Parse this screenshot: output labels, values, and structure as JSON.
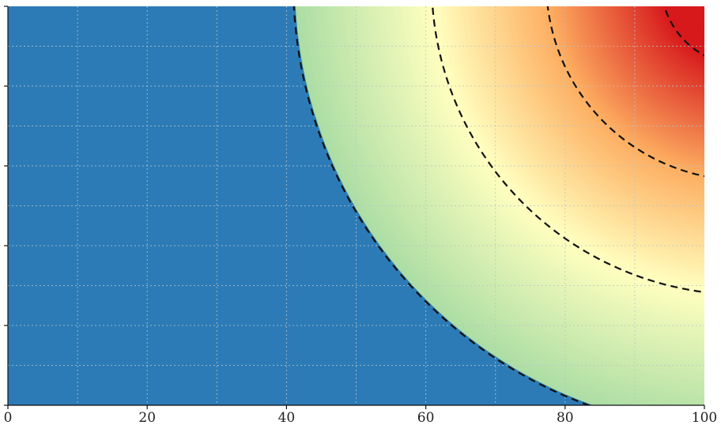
{
  "chart_data": {
    "type": "heatmap",
    "title": "",
    "xlabel": "",
    "ylabel": "",
    "xlim": [
      0,
      100
    ],
    "x_ticks": [
      {
        "value": 0,
        "label": "0"
      },
      {
        "value": 20,
        "label": "20"
      },
      {
        "value": 40,
        "label": "40"
      },
      {
        "value": 60,
        "label": "60"
      },
      {
        "value": 80,
        "label": "80"
      },
      {
        "value": 100,
        "label": "100"
      }
    ],
    "x_minor_grid": [
      10,
      30,
      50,
      70,
      90
    ],
    "grid": true,
    "grid_style": "dotted",
    "colormap": {
      "name": "diverging",
      "stops": [
        {
          "t": 0.0,
          "color": "#2c7bb6"
        },
        {
          "t": 0.25,
          "color": "#abdda4"
        },
        {
          "t": 0.5,
          "color": "#ffffbf"
        },
        {
          "t": 0.75,
          "color": "#fdae61"
        },
        {
          "t": 1.0,
          "color": "#d7191c"
        }
      ]
    },
    "contour_levels": [
      0.25,
      0.5,
      0.75,
      1.0
    ],
    "contour_style": "dashed",
    "contour_color": "#111111"
  }
}
